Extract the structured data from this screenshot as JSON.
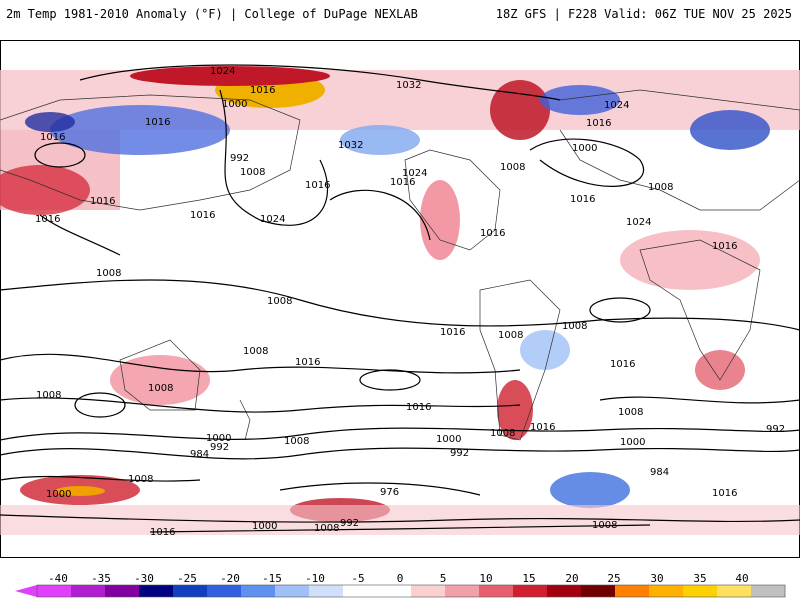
{
  "header": {
    "title": "2m Temp 1981-2010 Anomaly (°F) | College of DuPage NEXLAB",
    "run_info": "18Z GFS | F228 Valid: 06Z TUE NOV 25 2025"
  },
  "colorbar": {
    "ticks": [
      "-40",
      "-35",
      "-30",
      "-25",
      "-20",
      "-15",
      "-10",
      "-5",
      "0",
      "5",
      "10",
      "15",
      "20",
      "25",
      "30",
      "35",
      "40"
    ],
    "colors": [
      "#e040fb",
      "#b020d0",
      "#8000a0",
      "#000080",
      "#1040c0",
      "#3060e0",
      "#6090f0",
      "#a0c0f8",
      "#d0e0fa",
      "#ffffff",
      "#ffffff",
      "#fad0d0",
      "#f0a0a8",
      "#e86070",
      "#d02030",
      "#a00010",
      "#700000",
      "#ff8000",
      "#ffb000",
      "#ffd000",
      "#ffe060",
      "#c0c0c0"
    ]
  },
  "map": {
    "contour_labels": [
      "1024",
      "1016",
      "1000",
      "1032",
      "1016",
      "992",
      "1008",
      "1016",
      "1016",
      "1024",
      "1032",
      "1024",
      "1016",
      "1008",
      "1016",
      "1016",
      "1016",
      "1000",
      "1016",
      "1024",
      "1016",
      "1024",
      "1008",
      "1016",
      "1008",
      "1016",
      "1008",
      "1016",
      "1008",
      "1008",
      "1008",
      "1016",
      "1008",
      "1016",
      "1008",
      "1016",
      "1016",
      "1008",
      "1008",
      "1000",
      "992",
      "1008",
      "1000",
      "992",
      "1000",
      "984",
      "992",
      "984",
      "976",
      "1000",
      "1008",
      "1016",
      "1000",
      "1008",
      "992",
      "1008",
      "1016"
    ]
  }
}
